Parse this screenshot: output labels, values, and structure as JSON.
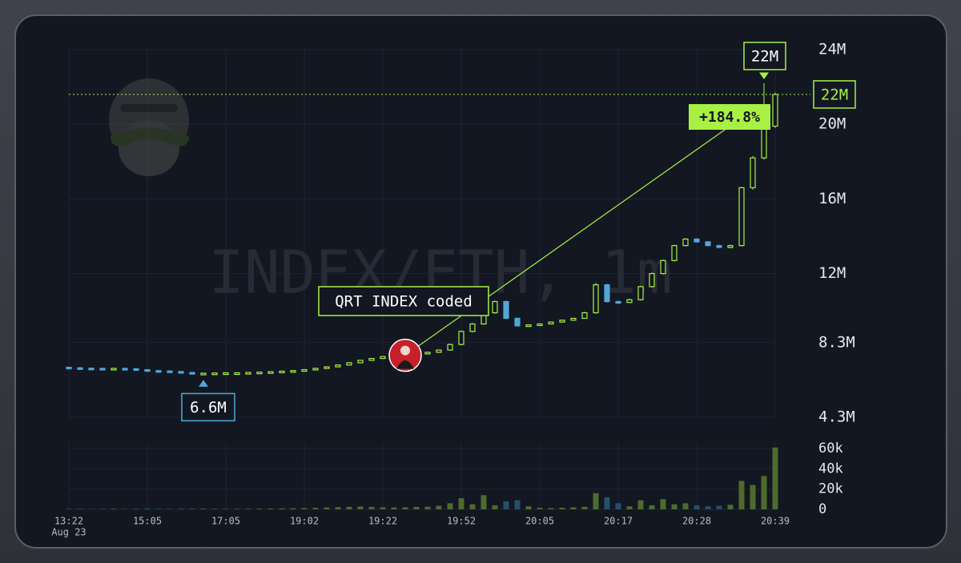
{
  "chart_data": {
    "type": "candlestick",
    "watermark": "INDEX/ETH, 1m",
    "annotation": "QRT INDEX coded",
    "change_label": "+184.8%",
    "last_price_label": "22M",
    "high_label": "22M",
    "low_label": "6.6M",
    "date_label": "Aug 23",
    "categories": [
      "13:22",
      null,
      null,
      null,
      null,
      null,
      null,
      "15:05",
      null,
      null,
      null,
      null,
      null,
      null,
      "17:05",
      null,
      null,
      null,
      null,
      null,
      null,
      "19:02",
      null,
      null,
      null,
      null,
      null,
      null,
      "19:22",
      null,
      null,
      null,
      null,
      null,
      null,
      "19:52",
      null,
      null,
      null,
      null,
      null,
      null,
      "20:05",
      null,
      null,
      null,
      null,
      null,
      null,
      "20:17",
      null,
      null,
      null,
      null,
      null,
      null,
      "20:28",
      null,
      null,
      null,
      null,
      null,
      null,
      "20:39"
    ],
    "open": [
      6.98,
      6.95,
      6.93,
      6.92,
      6.9,
      6.92,
      6.9,
      6.85,
      6.8,
      6.78,
      6.75,
      6.7,
      6.65,
      6.66,
      6.67,
      6.68,
      6.68,
      6.7,
      6.72,
      6.74,
      6.77,
      6.8,
      6.85,
      6.92,
      7.0,
      7.1,
      7.22,
      7.35,
      7.45,
      7.55,
      7.6,
      7.62,
      7.7,
      7.78,
      7.9,
      8.2,
      8.9,
      9.3,
      9.9,
      10.5,
      9.6,
      9.2,
      9.25,
      9.3,
      9.4,
      9.5,
      9.6,
      9.9,
      11.4,
      10.5,
      10.45,
      10.6,
      11.3,
      12.0,
      12.7,
      13.5,
      13.85,
      13.7,
      13.5,
      13.4,
      13.5,
      16.6,
      18.2,
      19.9
    ],
    "high": [
      7.0,
      6.97,
      6.95,
      6.94,
      6.93,
      6.94,
      6.92,
      6.87,
      6.82,
      6.8,
      6.77,
      6.72,
      6.68,
      6.69,
      6.7,
      6.7,
      6.72,
      6.74,
      6.76,
      6.79,
      6.82,
      6.88,
      6.94,
      7.02,
      7.12,
      7.25,
      7.37,
      7.47,
      7.57,
      7.62,
      7.66,
      7.72,
      7.8,
      7.93,
      8.25,
      8.95,
      9.35,
      9.95,
      10.55,
      10.55,
      9.65,
      9.28,
      9.33,
      9.42,
      9.52,
      9.62,
      9.95,
      11.5,
      11.45,
      10.55,
      10.65,
      11.35,
      12.05,
      12.75,
      13.55,
      13.9,
      13.9,
      13.75,
      13.55,
      13.55,
      16.65,
      18.3,
      22.2,
      21.7
    ],
    "low": [
      6.94,
      6.92,
      6.9,
      6.88,
      6.88,
      6.88,
      6.84,
      6.78,
      6.76,
      6.73,
      6.68,
      6.63,
      6.6,
      6.64,
      6.65,
      6.66,
      6.66,
      6.68,
      6.7,
      6.72,
      6.75,
      6.78,
      6.83,
      6.9,
      6.98,
      7.08,
      7.2,
      7.33,
      7.43,
      7.53,
      7.58,
      7.6,
      7.68,
      7.76,
      7.88,
      8.15,
      8.85,
      9.25,
      9.85,
      9.55,
      9.15,
      9.18,
      9.22,
      9.28,
      9.38,
      9.48,
      9.58,
      9.85,
      10.45,
      10.4,
      10.42,
      10.55,
      11.25,
      11.95,
      12.65,
      13.45,
      13.65,
      13.45,
      13.35,
      13.35,
      13.45,
      16.5,
      18.1,
      19.8
    ],
    "close": [
      6.95,
      6.93,
      6.92,
      6.9,
      6.92,
      6.9,
      6.85,
      6.8,
      6.78,
      6.75,
      6.7,
      6.65,
      6.66,
      6.67,
      6.68,
      6.68,
      6.7,
      6.72,
      6.74,
      6.77,
      6.8,
      6.85,
      6.92,
      7.0,
      7.1,
      7.22,
      7.35,
      7.45,
      7.55,
      7.6,
      7.62,
      7.7,
      7.78,
      7.9,
      8.2,
      8.9,
      9.3,
      9.9,
      10.5,
      9.6,
      9.2,
      9.25,
      9.3,
      9.4,
      9.5,
      9.6,
      9.9,
      11.4,
      10.5,
      10.45,
      10.6,
      11.3,
      12.0,
      12.7,
      13.5,
      13.85,
      13.7,
      13.5,
      13.4,
      13.5,
      16.6,
      18.2,
      19.9,
      21.6
    ],
    "volume": [
      600,
      500,
      400,
      500,
      600,
      500,
      700,
      900,
      600,
      500,
      700,
      800,
      600,
      500,
      400,
      500,
      600,
      700,
      800,
      900,
      1000,
      1200,
      1500,
      1800,
      2200,
      2500,
      2800,
      2400,
      2000,
      1800,
      2000,
      2400,
      2600,
      3500,
      6000,
      11000,
      5000,
      14000,
      4000,
      8000,
      9000,
      3000,
      1500,
      1200,
      1600,
      2000,
      2500,
      16000,
      12000,
      6000,
      3000,
      9000,
      4000,
      10000,
      5000,
      6000,
      4000,
      3000,
      3500,
      4500,
      28000,
      24000,
      33000,
      61000
    ],
    "ylim": [
      4.3,
      24
    ],
    "yticks": [
      {
        "value": 24,
        "label": "24M"
      },
      {
        "value": 20,
        "label": "20M"
      },
      {
        "value": 16,
        "label": "16M"
      },
      {
        "value": 12,
        "label": "12M"
      },
      {
        "value": 8.3,
        "label": "8.3M"
      },
      {
        "value": 4.3,
        "label": "4.3M"
      }
    ],
    "y2lim": [
      0,
      60000
    ],
    "y2ticks": [
      0,
      {
        "value": 20000,
        "label": "20k"
      },
      {
        "value": 40000,
        "label": "40k"
      },
      {
        "value": 60000,
        "label": "60k"
      }
    ],
    "grid": true,
    "up_color": "#a8f044",
    "down_color": "#4fa8d8",
    "volume_up_color": "#4e6b2c",
    "volume_down_color": "#24506a"
  }
}
